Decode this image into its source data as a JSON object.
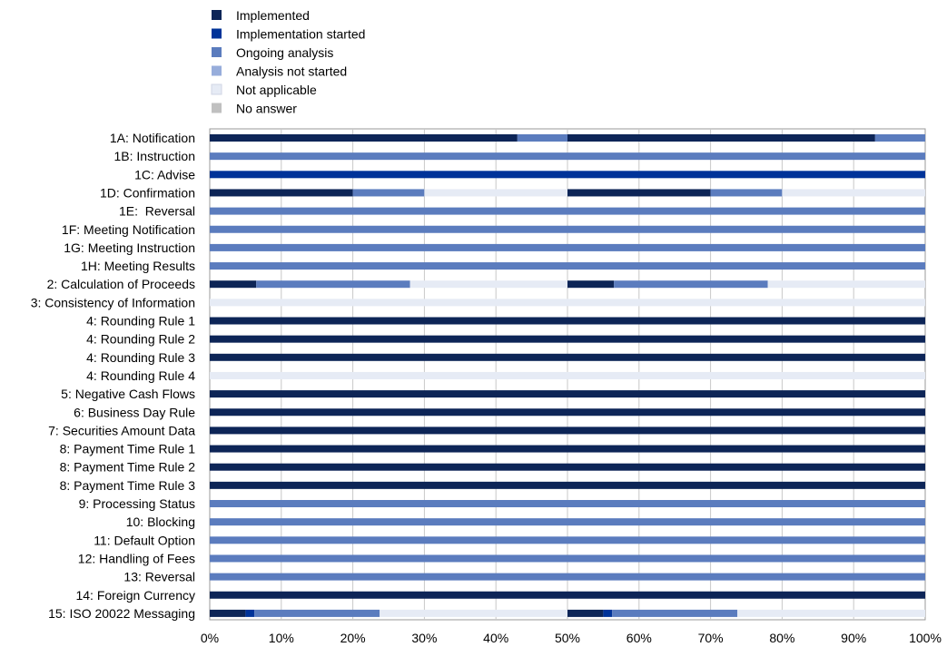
{
  "chart_data": {
    "type": "bar",
    "orientation": "horizontal",
    "stacked": true,
    "title": "",
    "xlabel": "",
    "ylabel": "",
    "xlim": [
      0,
      100
    ],
    "x_ticks": [
      "0%",
      "10%",
      "20%",
      "30%",
      "40%",
      "50%",
      "60%",
      "70%",
      "80%",
      "90%",
      "100%"
    ],
    "grid": "vertical",
    "legend_position": "top-left",
    "series": [
      {
        "name": "Implemented",
        "color": "#0d2557"
      },
      {
        "name": "Implementation started",
        "color": "#003399"
      },
      {
        "name": "Ongoing analysis",
        "color": "#5b7cbe"
      },
      {
        "name": "Analysis not started",
        "color": "#97addb"
      },
      {
        "name": "Not applicable",
        "color": "#e6ebf5"
      },
      {
        "name": "No answer",
        "color": "#c0c0c0"
      }
    ],
    "categories": [
      {
        "label": "1A: Notification",
        "halves": [
          [
            86,
            0,
            14,
            0,
            0,
            0
          ],
          [
            86,
            0,
            14,
            0,
            0,
            0
          ]
        ]
      },
      {
        "label": "1B: Instruction",
        "halves": [
          [
            0,
            0,
            100,
            0,
            0,
            0
          ],
          [
            0,
            0,
            100,
            0,
            0,
            0
          ]
        ]
      },
      {
        "label": "1C: Advise",
        "halves": [
          [
            0,
            100,
            0,
            0,
            0,
            0
          ],
          [
            0,
            100,
            0,
            0,
            0,
            0
          ]
        ]
      },
      {
        "label": "1D: Confirmation",
        "halves": [
          [
            40,
            0,
            20,
            0,
            40,
            0
          ],
          [
            40,
            0,
            20,
            0,
            40,
            0
          ]
        ]
      },
      {
        "label": "1E:  Reversal",
        "halves": [
          [
            0,
            0,
            100,
            0,
            0,
            0
          ],
          [
            0,
            0,
            100,
            0,
            0,
            0
          ]
        ]
      },
      {
        "label": "1F: Meeting Notification",
        "halves": [
          [
            0,
            0,
            100,
            0,
            0,
            0
          ],
          [
            0,
            0,
            100,
            0,
            0,
            0
          ]
        ]
      },
      {
        "label": "1G: Meeting Instruction",
        "halves": [
          [
            0,
            0,
            100,
            0,
            0,
            0
          ],
          [
            0,
            0,
            100,
            0,
            0,
            0
          ]
        ]
      },
      {
        "label": "1H: Meeting Results",
        "halves": [
          [
            0,
            0,
            100,
            0,
            0,
            0
          ],
          [
            0,
            0,
            100,
            0,
            0,
            0
          ]
        ]
      },
      {
        "label": "2: Calculation of Proceeds",
        "halves": [
          [
            13,
            0,
            43,
            0,
            44,
            0
          ],
          [
            13,
            0,
            43,
            0,
            44,
            0
          ]
        ]
      },
      {
        "label": "3: Consistency of Information",
        "halves": [
          [
            0,
            0,
            0,
            0,
            100,
            0
          ],
          [
            0,
            0,
            0,
            0,
            100,
            0
          ]
        ]
      },
      {
        "label": "4: Rounding Rule 1",
        "halves": [
          [
            100,
            0,
            0,
            0,
            0,
            0
          ],
          [
            100,
            0,
            0,
            0,
            0,
            0
          ]
        ]
      },
      {
        "label": "4: Rounding Rule 2",
        "halves": [
          [
            100,
            0,
            0,
            0,
            0,
            0
          ],
          [
            100,
            0,
            0,
            0,
            0,
            0
          ]
        ]
      },
      {
        "label": "4: Rounding Rule 3",
        "halves": [
          [
            100,
            0,
            0,
            0,
            0,
            0
          ],
          [
            100,
            0,
            0,
            0,
            0,
            0
          ]
        ]
      },
      {
        "label": "4: Rounding Rule 4",
        "halves": [
          [
            0,
            0,
            0,
            0,
            100,
            0
          ],
          [
            0,
            0,
            0,
            0,
            100,
            0
          ]
        ]
      },
      {
        "label": "5: Negative Cash Flows",
        "halves": [
          [
            100,
            0,
            0,
            0,
            0,
            0
          ],
          [
            100,
            0,
            0,
            0,
            0,
            0
          ]
        ]
      },
      {
        "label": "6: Business Day Rule",
        "halves": [
          [
            100,
            0,
            0,
            0,
            0,
            0
          ],
          [
            100,
            0,
            0,
            0,
            0,
            0
          ]
        ]
      },
      {
        "label": "7: Securities Amount Data",
        "halves": [
          [
            100,
            0,
            0,
            0,
            0,
            0
          ],
          [
            100,
            0,
            0,
            0,
            0,
            0
          ]
        ]
      },
      {
        "label": "8: Payment Time Rule 1",
        "halves": [
          [
            100,
            0,
            0,
            0,
            0,
            0
          ],
          [
            100,
            0,
            0,
            0,
            0,
            0
          ]
        ]
      },
      {
        "label": "8: Payment Time Rule 2",
        "halves": [
          [
            100,
            0,
            0,
            0,
            0,
            0
          ],
          [
            100,
            0,
            0,
            0,
            0,
            0
          ]
        ]
      },
      {
        "label": "8: Payment Time Rule 3",
        "halves": [
          [
            100,
            0,
            0,
            0,
            0,
            0
          ],
          [
            100,
            0,
            0,
            0,
            0,
            0
          ]
        ]
      },
      {
        "label": "9: Processing Status",
        "halves": [
          [
            0,
            0,
            100,
            0,
            0,
            0
          ],
          [
            0,
            0,
            100,
            0,
            0,
            0
          ]
        ]
      },
      {
        "label": "10: Blocking",
        "halves": [
          [
            0,
            0,
            100,
            0,
            0,
            0
          ],
          [
            0,
            0,
            100,
            0,
            0,
            0
          ]
        ]
      },
      {
        "label": "11: Default Option",
        "halves": [
          [
            0,
            0,
            100,
            0,
            0,
            0
          ],
          [
            0,
            0,
            100,
            0,
            0,
            0
          ]
        ]
      },
      {
        "label": "12: Handling of Fees",
        "halves": [
          [
            0,
            0,
            100,
            0,
            0,
            0
          ],
          [
            0,
            0,
            100,
            0,
            0,
            0
          ]
        ]
      },
      {
        "label": "13: Reversal",
        "halves": [
          [
            0,
            0,
            100,
            0,
            0,
            0
          ],
          [
            0,
            0,
            100,
            0,
            0,
            0
          ]
        ]
      },
      {
        "label": "14: Foreign Currency",
        "halves": [
          [
            100,
            0,
            0,
            0,
            0,
            0
          ],
          [
            100,
            0,
            0,
            0,
            0,
            0
          ]
        ]
      },
      {
        "label": "15: ISO 20022 Messaging",
        "halves": [
          [
            10,
            2.5,
            35,
            0,
            52.5,
            0
          ],
          [
            10,
            2.5,
            35,
            0,
            52.5,
            0
          ]
        ]
      }
    ]
  }
}
